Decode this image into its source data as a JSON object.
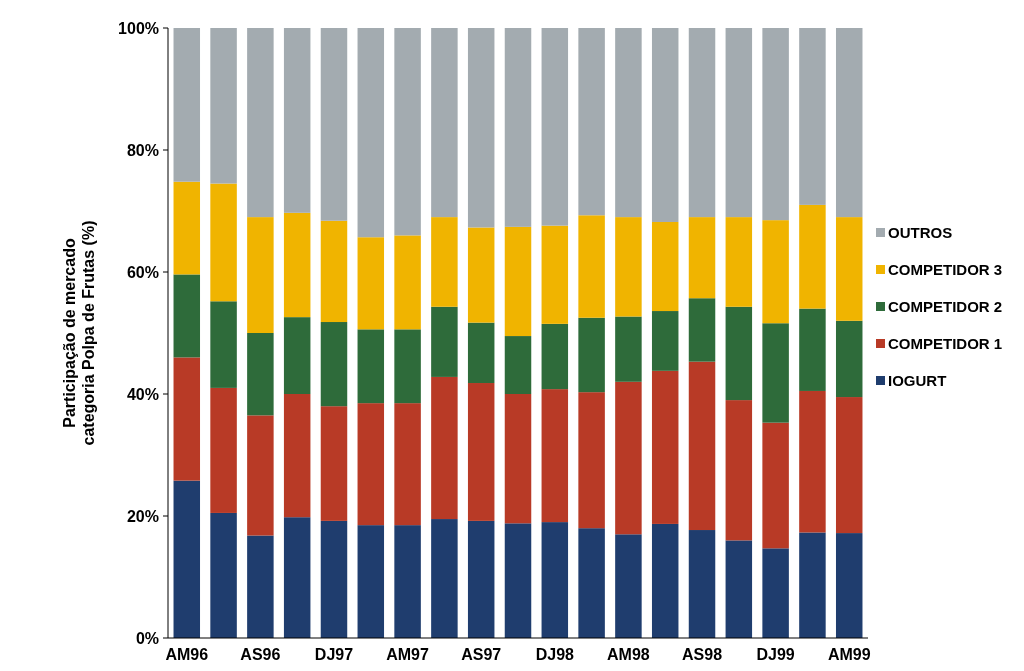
{
  "chart_data": {
    "type": "bar",
    "stacked": true,
    "ylabel": "Participação de mercado categoria Polpa de Frutas (%)",
    "categories": [
      "AM96",
      null,
      "AS96",
      null,
      "DJ97",
      null,
      "AM97",
      null,
      "AS97",
      null,
      "DJ98",
      null,
      "AM98",
      null,
      "AS98",
      null,
      "DJ99",
      null,
      "AM99"
    ],
    "series": [
      {
        "name": "IOGURT",
        "color": "#1f3d6e",
        "values": [
          25.8,
          20.5,
          16.8,
          19.8,
          19.2,
          18.5,
          18.5,
          19.5,
          19.2,
          18.8,
          19,
          18,
          17,
          18.7,
          17.7,
          16,
          14.7,
          17.3,
          17.2
        ]
      },
      {
        "name": "COMPETIDOR 1",
        "color": "#b83a26",
        "values": [
          20.2,
          20.5,
          19.7,
          20.2,
          18.8,
          20,
          20,
          23.3,
          22.6,
          21.2,
          21.8,
          22.3,
          25,
          25.1,
          27.6,
          23,
          20.6,
          23.2,
          22.3
        ]
      },
      {
        "name": "COMPETIDOR 2",
        "color": "#2e6b3a",
        "values": [
          13.6,
          14.2,
          13.5,
          12.6,
          13.8,
          12.1,
          12.1,
          11.5,
          9.9,
          9.5,
          10.7,
          12.2,
          10.7,
          9.8,
          10.4,
          15.3,
          16.3,
          13.5,
          12.5
        ]
      },
      {
        "name": "COMPETIDOR 3",
        "color": "#f0b400",
        "values": [
          15.2,
          19.3,
          19,
          17.1,
          16.6,
          15.1,
          15.4,
          14.7,
          15.6,
          17.9,
          16.1,
          16.8,
          16.3,
          14.6,
          13.3,
          14.7,
          16.9,
          17,
          17
        ]
      },
      {
        "name": "OUTROS",
        "color": "#a3abb0",
        "values": [
          25.2,
          25.5,
          31,
          30.3,
          31.6,
          34.3,
          34,
          31,
          32.7,
          32.6,
          32.4,
          30.7,
          31,
          31.8,
          31,
          31,
          31.5,
          29,
          31
        ]
      }
    ],
    "ylim": [
      0,
      100
    ],
    "yticks": [
      {
        "value": 0,
        "label": "0%"
      },
      {
        "value": 20,
        "label": "20%"
      },
      {
        "value": 40,
        "label": "40%"
      },
      {
        "value": 60,
        "label": "60%"
      },
      {
        "value": 80,
        "label": "80%"
      },
      {
        "value": 100,
        "label": "100%"
      }
    ],
    "grid": false,
    "legend": "right"
  }
}
